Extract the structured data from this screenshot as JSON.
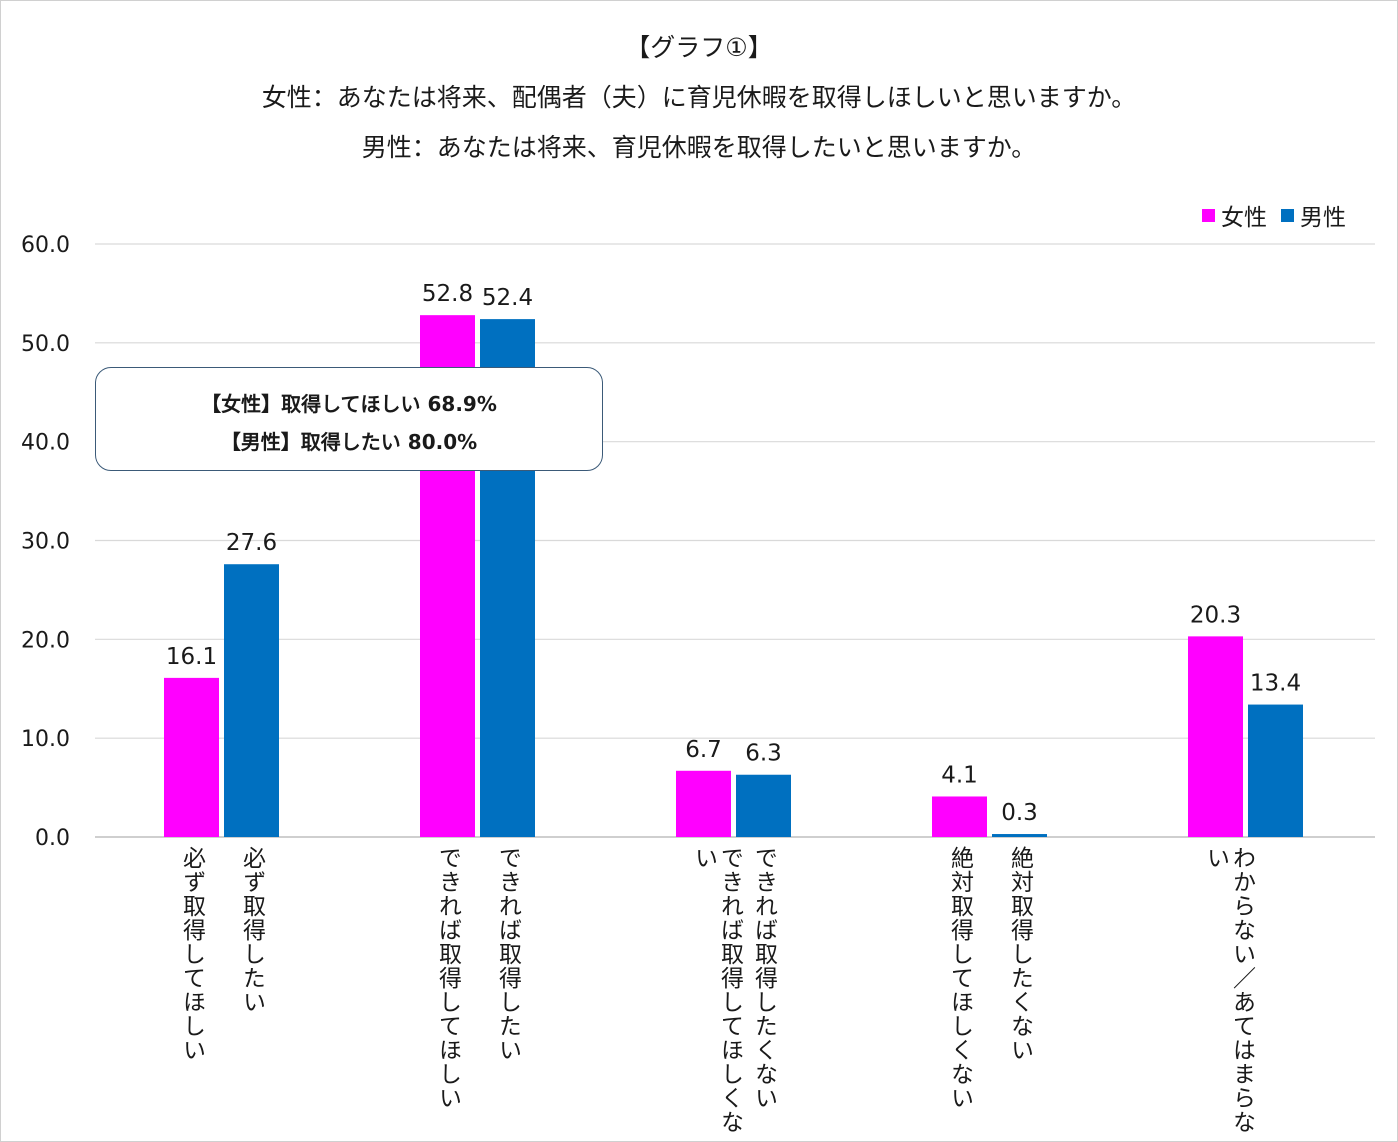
{
  "title": {
    "line1": "【グラフ①】",
    "line2": "女性：あなたは将来、配偶者（夫）に育児休暇を取得しほしいと思いますか。",
    "line3": "男性：あなたは将来、育児休暇を取得したいと思いますか。"
  },
  "legend": {
    "female": "女性",
    "male": "男性"
  },
  "callout": {
    "line1": "【女性】取得してほしい 68.9%",
    "line2": "【男性】取得したい  80.0%"
  },
  "colors": {
    "female": "#ff00ff",
    "male": "#0070c0",
    "grid": "#d9d9d9",
    "axis": "#bfbfbf"
  },
  "chart_data": {
    "type": "bar",
    "title": "【グラフ①】",
    "ylim": [
      0,
      60
    ],
    "yticks": [
      "0.0",
      "10.0",
      "20.0",
      "30.0",
      "40.0",
      "50.0",
      "60.0"
    ],
    "grid": true,
    "legend_position": "top-right",
    "categories": [
      {
        "female": "必ず取得してほしい",
        "male": "必ず取得したい"
      },
      {
        "female": "できれば取得してほしい",
        "male": "できれば取得したい"
      },
      {
        "female": "できれば取得してほしくない",
        "male": "できれば取得したくない"
      },
      {
        "female": "絶対取得してほしくない",
        "male": "絶対取得したくない"
      },
      {
        "female": "わからない／あてはまらない",
        "male": ""
      }
    ],
    "series": [
      {
        "name": "女性",
        "values": [
          16.1,
          52.8,
          6.7,
          4.1,
          20.3
        ],
        "labels": [
          "16.1",
          "52.8",
          "6.7",
          "4.1",
          "20.3"
        ]
      },
      {
        "name": "男性",
        "values": [
          27.6,
          52.4,
          6.3,
          0.3,
          13.4
        ],
        "labels": [
          "27.6",
          "52.4",
          "6.3",
          "0.3",
          "13.4"
        ]
      }
    ]
  }
}
